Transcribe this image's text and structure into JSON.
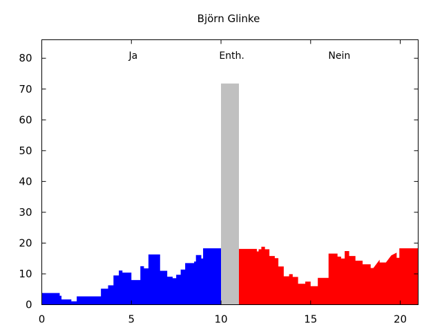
{
  "chart_data": {
    "type": "area",
    "title": "Björn Glinke",
    "xlim": [
      0,
      21
    ],
    "ylim": [
      0,
      86
    ],
    "x_ticks": [
      0,
      5,
      10,
      15,
      20
    ],
    "y_ticks": [
      0,
      10,
      20,
      30,
      40,
      50,
      60,
      70,
      80
    ],
    "annotations": [
      {
        "text": "Ja",
        "x": 5.1,
        "y": 81
      },
      {
        "text": "Enth.",
        "x": 10.6,
        "y": 81
      },
      {
        "text": "Nein",
        "x": 16.6,
        "y": 81
      }
    ],
    "series": [
      {
        "color": "#0000ff",
        "points": [
          [
            0.0,
            3.8
          ],
          [
            1.0,
            3.8
          ],
          [
            1.0,
            2.9
          ],
          [
            1.1,
            2.9
          ],
          [
            1.1,
            1.7
          ],
          [
            1.65,
            1.7
          ],
          [
            1.65,
            1.1
          ],
          [
            1.95,
            1.1
          ],
          [
            1.95,
            2.7
          ],
          [
            3.3,
            2.7
          ],
          [
            3.3,
            5.2
          ],
          [
            3.7,
            5.2
          ],
          [
            3.7,
            6.3
          ],
          [
            4.0,
            6.3
          ],
          [
            4.0,
            9.5
          ],
          [
            4.3,
            9.5
          ],
          [
            4.3,
            11.1
          ],
          [
            4.5,
            11.1
          ],
          [
            4.5,
            10.4
          ],
          [
            5.0,
            10.4
          ],
          [
            5.0,
            8.0
          ],
          [
            5.5,
            8.0
          ],
          [
            5.5,
            12.5
          ],
          [
            5.7,
            12.5
          ],
          [
            5.7,
            11.8
          ],
          [
            5.95,
            11.8
          ],
          [
            5.95,
            16.3
          ],
          [
            6.6,
            16.3
          ],
          [
            6.6,
            11.0
          ],
          [
            7.0,
            11.0
          ],
          [
            7.0,
            9.1
          ],
          [
            7.3,
            9.1
          ],
          [
            7.3,
            8.6
          ],
          [
            7.5,
            8.6
          ],
          [
            7.5,
            9.7
          ],
          [
            7.75,
            9.7
          ],
          [
            7.75,
            11.4
          ],
          [
            8.0,
            11.4
          ],
          [
            8.0,
            13.5
          ],
          [
            8.5,
            13.5
          ],
          [
            8.5,
            14.0
          ],
          [
            8.6,
            14.0
          ],
          [
            8.6,
            16.1
          ],
          [
            8.9,
            16.1
          ],
          [
            8.9,
            15.0
          ],
          [
            9.0,
            15.0
          ],
          [
            9.0,
            18.3
          ],
          [
            10.0,
            18.3
          ]
        ]
      },
      {
        "color": "#c0c0c0",
        "points": [
          [
            10.0,
            71.8
          ],
          [
            11.0,
            71.8
          ]
        ]
      },
      {
        "color": "#ff0000",
        "points": [
          [
            11.0,
            18.1
          ],
          [
            12.0,
            18.1
          ],
          [
            12.0,
            17.3
          ],
          [
            12.1,
            17.3
          ],
          [
            12.1,
            18.0
          ],
          [
            12.25,
            18.0
          ],
          [
            12.25,
            18.8
          ],
          [
            12.45,
            18.8
          ],
          [
            12.45,
            18.0
          ],
          [
            12.7,
            18.0
          ],
          [
            12.7,
            15.8
          ],
          [
            13.0,
            15.8
          ],
          [
            13.0,
            15.1
          ],
          [
            13.2,
            15.1
          ],
          [
            13.2,
            12.4
          ],
          [
            13.5,
            12.4
          ],
          [
            13.5,
            9.2
          ],
          [
            13.8,
            9.2
          ],
          [
            13.8,
            9.9
          ],
          [
            14.0,
            9.9
          ],
          [
            14.0,
            9.0
          ],
          [
            14.3,
            9.0
          ],
          [
            14.3,
            6.8
          ],
          [
            14.7,
            6.8
          ],
          [
            14.7,
            7.5
          ],
          [
            15.0,
            7.5
          ],
          [
            15.0,
            6.0
          ],
          [
            15.4,
            6.0
          ],
          [
            15.4,
            8.7
          ],
          [
            16.0,
            8.7
          ],
          [
            16.0,
            16.6
          ],
          [
            16.5,
            16.6
          ],
          [
            16.5,
            15.6
          ],
          [
            16.7,
            15.6
          ],
          [
            16.7,
            15.0
          ],
          [
            16.9,
            15.0
          ],
          [
            16.9,
            17.4
          ],
          [
            17.15,
            17.4
          ],
          [
            17.15,
            15.8
          ],
          [
            17.5,
            15.8
          ],
          [
            17.5,
            14.3
          ],
          [
            17.9,
            14.3
          ],
          [
            17.9,
            13.1
          ],
          [
            18.35,
            13.1
          ],
          [
            18.35,
            11.9
          ],
          [
            18.5,
            11.9
          ],
          [
            18.85,
            14.6
          ],
          [
            18.85,
            13.7
          ],
          [
            19.2,
            13.7
          ],
          [
            19.5,
            16.0
          ],
          [
            19.8,
            16.9
          ],
          [
            19.8,
            15.2
          ],
          [
            19.95,
            15.2
          ],
          [
            19.95,
            18.3
          ],
          [
            21.0,
            18.3
          ]
        ]
      }
    ]
  }
}
